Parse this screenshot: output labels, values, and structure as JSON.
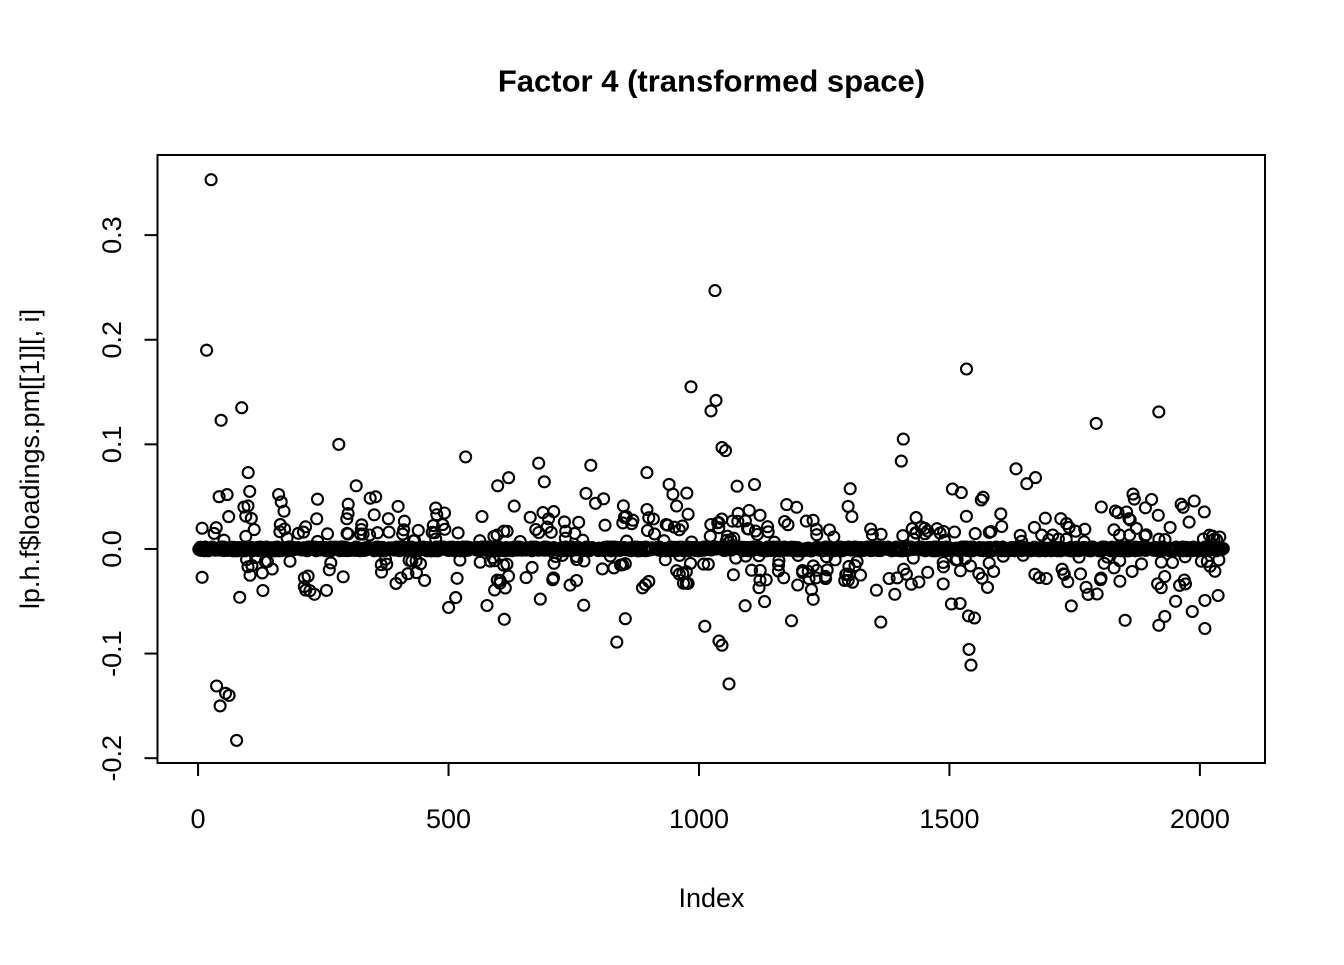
{
  "chart_data": {
    "type": "scatter",
    "title": "Factor 4 (transformed space)",
    "xlabel": "Index",
    "ylabel": "lp.h.f$loadings.pm[[1]][, i]",
    "x_axis": {
      "tick_values": [
        0,
        500,
        1000,
        1500,
        2000
      ],
      "tick_labels": [
        "0",
        "500",
        "1000",
        "1500",
        "2000"
      ],
      "lim": [
        -81,
        2130
      ]
    },
    "y_axis": {
      "tick_values": [
        0.3,
        0.2,
        0.1,
        0.0,
        -0.1,
        -0.2
      ],
      "tick_labels": [
        "0.3",
        "0.2",
        "0.1",
        "0.0",
        "-0.1",
        "-0.2"
      ],
      "lim": [
        -0.2046,
        0.3766
      ]
    },
    "grid": false,
    "legend": false,
    "marker": {
      "shape": "open-circle",
      "color": "#000000",
      "radius_px": 5.5,
      "stroke_px": 2.1
    },
    "n_points_depicted": 2048,
    "notable_points": [
      [
        26,
        0.353
      ],
      [
        17,
        0.19
      ],
      [
        87,
        0.135
      ],
      [
        46,
        0.123
      ],
      [
        281,
        0.1
      ],
      [
        100,
        0.073
      ],
      [
        42,
        0.05
      ],
      [
        58,
        0.052
      ],
      [
        103,
        0.055
      ],
      [
        166,
        0.045
      ],
      [
        534,
        0.088
      ],
      [
        680,
        0.082
      ],
      [
        784,
        0.08
      ],
      [
        896,
        0.073
      ],
      [
        984,
        0.155
      ],
      [
        1024,
        0.132
      ],
      [
        1032,
        0.247
      ],
      [
        1034,
        0.142
      ],
      [
        1046,
        0.097
      ],
      [
        1053,
        0.094
      ],
      [
        1404,
        0.084
      ],
      [
        1408,
        0.105
      ],
      [
        1534,
        0.172
      ],
      [
        1793,
        0.12
      ],
      [
        1918,
        0.131
      ],
      [
        77,
        -0.183
      ],
      [
        44,
        -0.15
      ],
      [
        62,
        -0.14
      ],
      [
        55,
        -0.138
      ],
      [
        37,
        -0.131
      ],
      [
        836,
        -0.089
      ],
      [
        1040,
        -0.088
      ],
      [
        1046,
        -0.092
      ],
      [
        1060,
        -0.129
      ],
      [
        1538,
        -0.064
      ],
      [
        1550,
        -0.066
      ],
      [
        1539,
        -0.096
      ],
      [
        1543,
        -0.111
      ],
      [
        1918,
        -0.073
      ],
      [
        2010,
        -0.076
      ]
    ],
    "dense_band": {
      "count": 1700,
      "y_sd": 0.0012,
      "y_clip": 0.0018,
      "x_range": [
        1,
        2048
      ]
    },
    "mid_scatter": {
      "count": 430,
      "base_abs": 0.006,
      "sd": 0.023,
      "max_abs": 0.088,
      "positive_share": 0.54,
      "x_range": [
        1,
        2048
      ]
    },
    "seed": 123456789,
    "colors": {
      "foreground": "#000000",
      "background": "#ffffff"
    }
  }
}
